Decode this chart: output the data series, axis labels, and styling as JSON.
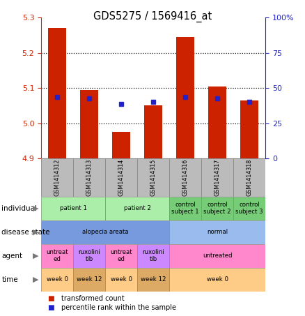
{
  "title": "GDS5275 / 1569416_at",
  "samples": [
    "GSM1414312",
    "GSM1414313",
    "GSM1414314",
    "GSM1414315",
    "GSM1414316",
    "GSM1414317",
    "GSM1414318"
  ],
  "red_values": [
    5.27,
    5.095,
    4.975,
    5.05,
    5.245,
    5.105,
    5.065
  ],
  "blue_values": [
    5.075,
    5.07,
    5.055,
    5.06,
    5.075,
    5.07,
    5.06
  ],
  "ylim_left": [
    4.9,
    5.3
  ],
  "ylim_right": [
    0,
    100
  ],
  "yticks_left": [
    4.9,
    5.0,
    5.1,
    5.2,
    5.3
  ],
  "yticks_right": [
    0,
    25,
    50,
    75,
    100
  ],
  "ytick_labels_right": [
    "0",
    "25",
    "50",
    "75",
    "100%"
  ],
  "grid_lines": [
    5.0,
    5.1,
    5.2
  ],
  "bar_color": "#cc2200",
  "dot_color": "#2222cc",
  "bar_width": 0.55,
  "individual_row": {
    "label": "individual",
    "cells": [
      {
        "text": "patient 1",
        "span": [
          0,
          2
        ],
        "color": "#aaeeaa"
      },
      {
        "text": "patient 2",
        "span": [
          2,
          4
        ],
        "color": "#aaeeaa"
      },
      {
        "text": "control\nsubject 1",
        "span": [
          4,
          5
        ],
        "color": "#77cc77"
      },
      {
        "text": "control\nsubject 2",
        "span": [
          5,
          6
        ],
        "color": "#77cc77"
      },
      {
        "text": "control\nsubject 3",
        "span": [
          6,
          7
        ],
        "color": "#77cc77"
      }
    ]
  },
  "disease_state_row": {
    "label": "disease state",
    "cells": [
      {
        "text": "alopecia areata",
        "span": [
          0,
          4
        ],
        "color": "#7799dd"
      },
      {
        "text": "normal",
        "span": [
          4,
          7
        ],
        "color": "#99bbee"
      }
    ]
  },
  "agent_row": {
    "label": "agent",
    "cells": [
      {
        "text": "untreat\ned",
        "span": [
          0,
          1
        ],
        "color": "#ff88cc"
      },
      {
        "text": "ruxolini\ntib",
        "span": [
          1,
          2
        ],
        "color": "#cc88ff"
      },
      {
        "text": "untreat\ned",
        "span": [
          2,
          3
        ],
        "color": "#ff88cc"
      },
      {
        "text": "ruxolini\ntib",
        "span": [
          3,
          4
        ],
        "color": "#cc88ff"
      },
      {
        "text": "untreated",
        "span": [
          4,
          7
        ],
        "color": "#ff88cc"
      }
    ]
  },
  "time_row": {
    "label": "time",
    "cells": [
      {
        "text": "week 0",
        "span": [
          0,
          1
        ],
        "color": "#ffcc88"
      },
      {
        "text": "week 12",
        "span": [
          1,
          2
        ],
        "color": "#ddaa66"
      },
      {
        "text": "week 0",
        "span": [
          2,
          3
        ],
        "color": "#ffcc88"
      },
      {
        "text": "week 12",
        "span": [
          3,
          4
        ],
        "color": "#ddaa66"
      },
      {
        "text": "week 0",
        "span": [
          4,
          7
        ],
        "color": "#ffcc88"
      }
    ]
  },
  "legend_red": "transformed count",
  "legend_blue": "percentile rank within the sample",
  "background_color": "#ffffff",
  "plot_bg": "#ffffff",
  "red_axis_color": "#cc2200",
  "blue_axis_color": "#2222cc",
  "gsm_box_color": "#bbbbbb",
  "gsm_border_color": "#888888"
}
